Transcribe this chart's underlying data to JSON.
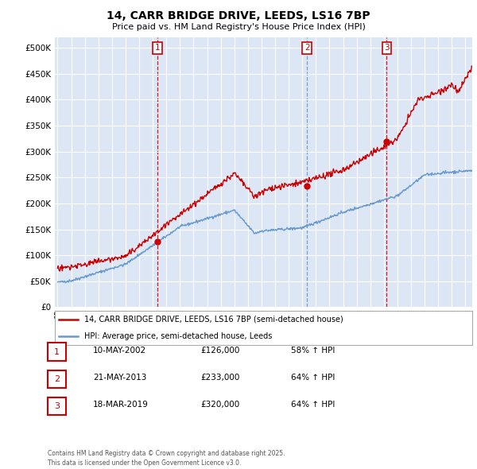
{
  "title": "14, CARR BRIDGE DRIVE, LEEDS, LS16 7BP",
  "subtitle": "Price paid vs. HM Land Registry's House Price Index (HPI)",
  "legend_line1": "14, CARR BRIDGE DRIVE, LEEDS, LS16 7BP (semi-detached house)",
  "legend_line2": "HPI: Average price, semi-detached house, Leeds",
  "footer": "Contains HM Land Registry data © Crown copyright and database right 2025.\nThis data is licensed under the Open Government Licence v3.0.",
  "purchase_color": "#cc0000",
  "hpi_color": "#6699cc",
  "vline_color_red": "#cc0000",
  "vline_color_blue": "#6699cc",
  "background_color": "#dce6f5",
  "purchases": [
    {
      "date_num": 2002.36,
      "price": 126000,
      "label": "1",
      "vline_color": "#cc0000"
    },
    {
      "date_num": 2013.36,
      "price": 233000,
      "label": "2",
      "vline_color": "#6699cc"
    },
    {
      "date_num": 2019.21,
      "price": 320000,
      "label": "3",
      "vline_color": "#cc0000"
    }
  ],
  "purchase_table": [
    {
      "num": "1",
      "date": "10-MAY-2002",
      "price": "£126,000",
      "pct": "58% ↑ HPI"
    },
    {
      "num": "2",
      "date": "21-MAY-2013",
      "price": "£233,000",
      "pct": "64% ↑ HPI"
    },
    {
      "num": "3",
      "date": "18-MAR-2019",
      "price": "£320,000",
      "pct": "64% ↑ HPI"
    }
  ],
  "ylim": [
    0,
    520000
  ],
  "yticks": [
    0,
    50000,
    100000,
    150000,
    200000,
    250000,
    300000,
    350000,
    400000,
    450000,
    500000
  ],
  "xmin": 1994.8,
  "xmax": 2025.5
}
